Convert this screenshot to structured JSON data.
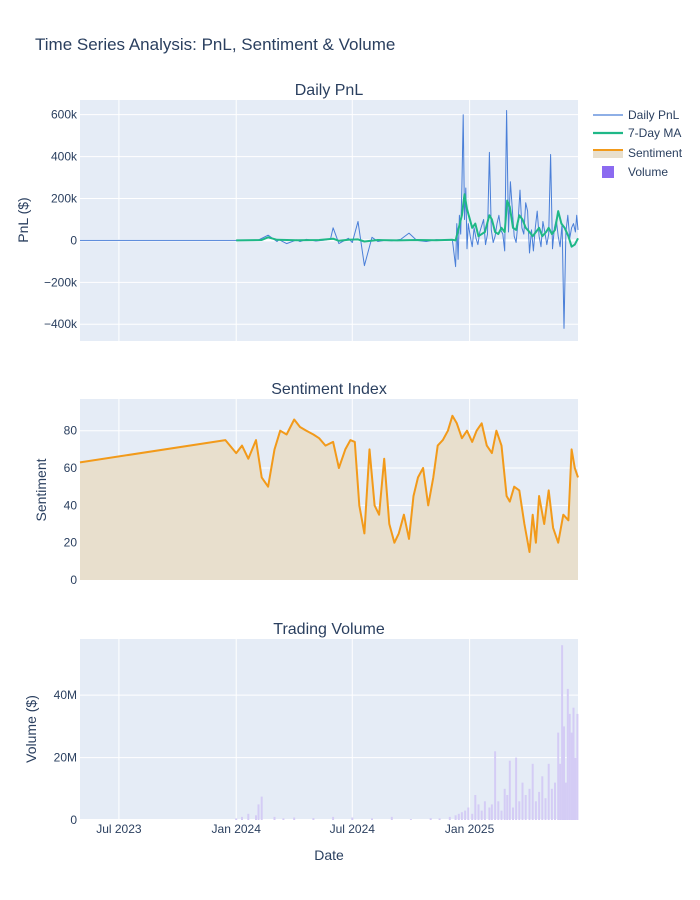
{
  "figure": {
    "title": "Time Series Analysis: PnL, Sentiment & Volume",
    "xlabel": "Date",
    "x_ticks": [
      "Jul 2023",
      "Jan 2024",
      "Jul 2024",
      "Jan 2025"
    ],
    "x_tick_dates": [
      "2023-07-01",
      "2024-01-01",
      "2024-07-01",
      "2025-01-01"
    ],
    "x_range": [
      "2023-05-01",
      "2025-06-20"
    ]
  },
  "legend": {
    "placement": "top-right",
    "entries": [
      "Daily PnL",
      "7-Day MA",
      "Sentiment",
      "Volume"
    ]
  },
  "colors": {
    "pnl": "#4a7fd8",
    "ma": "#1fb887",
    "sentiment": "#f29a1a",
    "sentiment_fill": "#e8dfcd",
    "volume": "#d4ccf5",
    "volume_legend": "#8b6af0",
    "plot_bg": "#e5ecf6",
    "grid": "#ffffff",
    "text": "#2a3f5f"
  },
  "chart_data": [
    {
      "type": "line",
      "title": "Daily PnL",
      "ylabel": "PnL ($)",
      "ylim": [
        -480000,
        670000
      ],
      "y_ticks": [
        -400000,
        -200000,
        0,
        200000,
        400000,
        600000
      ],
      "y_tick_labels": [
        "−400k",
        "−200k",
        "0",
        "200k",
        "400k",
        "600k"
      ],
      "series": [
        {
          "name": "Daily PnL",
          "x": [
            "2023-05-01",
            "2023-10-01",
            "2024-01-01",
            "2024-02-05",
            "2024-02-20",
            "2024-03-05",
            "2024-03-08",
            "2024-03-20",
            "2024-04-05",
            "2024-04-10",
            "2024-04-20",
            "2024-05-05",
            "2024-05-20",
            "2024-05-28",
            "2024-06-01",
            "2024-06-10",
            "2024-06-25",
            "2024-07-01",
            "2024-07-10",
            "2024-07-20",
            "2024-08-01",
            "2024-08-10",
            "2024-08-20",
            "2024-09-01",
            "2024-09-15",
            "2024-09-28",
            "2024-10-10",
            "2024-10-25",
            "2024-11-10",
            "2024-11-25",
            "2024-12-05",
            "2024-12-10",
            "2024-12-12",
            "2024-12-14",
            "2024-12-16",
            "2024-12-18",
            "2024-12-20",
            "2024-12-22",
            "2024-12-24",
            "2024-12-26",
            "2024-12-28",
            "2024-12-30",
            "2025-01-02",
            "2025-01-05",
            "2025-01-08",
            "2025-01-11",
            "2025-01-14",
            "2025-01-17",
            "2025-01-20",
            "2025-01-23",
            "2025-01-26",
            "2025-01-29",
            "2025-02-01",
            "2025-02-04",
            "2025-02-07",
            "2025-02-10",
            "2025-02-13",
            "2025-02-16",
            "2025-02-19",
            "2025-02-22",
            "2025-02-25",
            "2025-02-28",
            "2025-03-03",
            "2025-03-06",
            "2025-03-09",
            "2025-03-12",
            "2025-03-15",
            "2025-03-18",
            "2025-03-21",
            "2025-03-24",
            "2025-03-27",
            "2025-03-30",
            "2025-04-02",
            "2025-04-05",
            "2025-04-08",
            "2025-04-11",
            "2025-04-14",
            "2025-04-17",
            "2025-04-20",
            "2025-04-23",
            "2025-04-26",
            "2025-04-29",
            "2025-05-02",
            "2025-05-05",
            "2025-05-08",
            "2025-05-11",
            "2025-05-14",
            "2025-05-17",
            "2025-05-20",
            "2025-05-23",
            "2025-05-26",
            "2025-05-29",
            "2025-06-01",
            "2025-06-04",
            "2025-06-07",
            "2025-06-10",
            "2025-06-13",
            "2025-06-16",
            "2025-06-18",
            "2025-06-20"
          ],
          "y": [
            0,
            0,
            0,
            2000,
            25000,
            -5000,
            4000,
            -15000,
            3000,
            -5000,
            5000,
            -3000,
            2000,
            8000,
            60000,
            -15000,
            10000,
            -10000,
            90000,
            -120000,
            15000,
            -5000,
            0,
            -2000,
            5000,
            35000,
            0,
            -5000,
            4000,
            0,
            2000,
            -125000,
            80000,
            -90000,
            120000,
            30000,
            260000,
            600000,
            100000,
            250000,
            -40000,
            80000,
            20000,
            -30000,
            60000,
            10000,
            -20000,
            40000,
            70000,
            100000,
            -20000,
            30000,
            420000,
            50000,
            -10000,
            20000,
            80000,
            120000,
            50000,
            30000,
            -50000,
            620000,
            40000,
            280000,
            150000,
            20000,
            -10000,
            90000,
            240000,
            60000,
            30000,
            180000,
            140000,
            -60000,
            50000,
            -50000,
            60000,
            140000,
            20000,
            -30000,
            90000,
            40000,
            -20000,
            30000,
            410000,
            -40000,
            60000,
            100000,
            20000,
            -30000,
            80000,
            -420000,
            40000,
            120000,
            10000,
            60000,
            80000,
            40000,
            120000,
            50000
          ]
        },
        {
          "name": "7-Day MA",
          "x": [
            "2024-01-01",
            "2024-02-10",
            "2024-02-20",
            "2024-03-05",
            "2024-04-05",
            "2024-05-10",
            "2024-06-01",
            "2024-06-10",
            "2024-06-25",
            "2024-07-10",
            "2024-07-20",
            "2024-08-10",
            "2024-09-10",
            "2024-10-10",
            "2024-11-10",
            "2024-12-05",
            "2024-12-10",
            "2024-12-15",
            "2024-12-20",
            "2024-12-24",
            "2024-12-28",
            "2025-01-05",
            "2025-01-10",
            "2025-01-15",
            "2025-01-20",
            "2025-01-25",
            "2025-02-01",
            "2025-02-05",
            "2025-02-10",
            "2025-02-15",
            "2025-02-20",
            "2025-02-25",
            "2025-03-01",
            "2025-03-05",
            "2025-03-10",
            "2025-03-15",
            "2025-03-20",
            "2025-03-25",
            "2025-03-30",
            "2025-04-05",
            "2025-04-10",
            "2025-04-15",
            "2025-04-20",
            "2025-04-25",
            "2025-05-01",
            "2025-05-05",
            "2025-05-10",
            "2025-05-15",
            "2025-05-20",
            "2025-05-25",
            "2025-05-30",
            "2025-06-05",
            "2025-06-10",
            "2025-06-15",
            "2025-06-20"
          ],
          "y": [
            0,
            2000,
            15000,
            3000,
            1000,
            2000,
            8000,
            -2000,
            3000,
            5000,
            -5000,
            2000,
            0,
            2000,
            1000,
            3000,
            0,
            60000,
            120000,
            220000,
            150000,
            60000,
            80000,
            20000,
            30000,
            40000,
            120000,
            100000,
            40000,
            30000,
            60000,
            40000,
            190000,
            160000,
            60000,
            50000,
            120000,
            100000,
            60000,
            40000,
            20000,
            40000,
            60000,
            20000,
            40000,
            60000,
            30000,
            50000,
            140000,
            80000,
            60000,
            20000,
            -30000,
            -20000,
            10000
          ]
        }
      ]
    },
    {
      "type": "area",
      "title": "Sentiment Index",
      "ylabel": "Sentiment",
      "ylim": [
        0,
        97
      ],
      "y_ticks": [
        0,
        20,
        40,
        60,
        80
      ],
      "series": [
        {
          "name": "Sentiment",
          "x": [
            "2023-05-01",
            "2023-12-15",
            "2024-01-01",
            "2024-01-10",
            "2024-01-20",
            "2024-02-01",
            "2024-02-10",
            "2024-02-20",
            "2024-03-01",
            "2024-03-10",
            "2024-03-20",
            "2024-04-01",
            "2024-04-10",
            "2024-04-20",
            "2024-05-01",
            "2024-05-10",
            "2024-05-20",
            "2024-06-01",
            "2024-06-10",
            "2024-06-20",
            "2024-06-28",
            "2024-07-05",
            "2024-07-12",
            "2024-07-20",
            "2024-07-28",
            "2024-08-05",
            "2024-08-12",
            "2024-08-20",
            "2024-08-28",
            "2024-09-05",
            "2024-09-12",
            "2024-09-20",
            "2024-09-28",
            "2024-10-05",
            "2024-10-12",
            "2024-10-20",
            "2024-10-28",
            "2024-11-05",
            "2024-11-12",
            "2024-11-20",
            "2024-11-28",
            "2024-12-05",
            "2024-12-12",
            "2024-12-20",
            "2024-12-28",
            "2025-01-05",
            "2025-01-12",
            "2025-01-20",
            "2025-01-28",
            "2025-02-05",
            "2025-02-12",
            "2025-02-20",
            "2025-02-28",
            "2025-03-05",
            "2025-03-12",
            "2025-03-20",
            "2025-03-28",
            "2025-04-05",
            "2025-04-10",
            "2025-04-15",
            "2025-04-20",
            "2025-04-28",
            "2025-05-05",
            "2025-05-12",
            "2025-05-20",
            "2025-05-28",
            "2025-06-05",
            "2025-06-10",
            "2025-06-15",
            "2025-06-20"
          ],
          "y": [
            63,
            75,
            68,
            72,
            65,
            75,
            55,
            50,
            70,
            80,
            78,
            86,
            82,
            80,
            78,
            76,
            72,
            74,
            60,
            70,
            75,
            74,
            40,
            25,
            70,
            40,
            35,
            65,
            30,
            20,
            25,
            35,
            22,
            45,
            55,
            60,
            40,
            55,
            72,
            75,
            80,
            88,
            84,
            76,
            80,
            74,
            80,
            84,
            72,
            68,
            80,
            72,
            45,
            42,
            50,
            48,
            30,
            15,
            35,
            20,
            45,
            30,
            48,
            28,
            20,
            35,
            32,
            70,
            60,
            55
          ]
        }
      ]
    },
    {
      "type": "bar",
      "title": "Trading Volume",
      "ylabel": "Volume ($)",
      "ylim": [
        0,
        58000000
      ],
      "y_ticks": [
        0,
        20000000,
        40000000
      ],
      "y_tick_labels": [
        "0",
        "20M",
        "40M"
      ],
      "series": [
        {
          "name": "Volume",
          "x": [
            "2024-01-01",
            "2024-01-10",
            "2024-01-20",
            "2024-02-01",
            "2024-02-05",
            "2024-02-10",
            "2024-03-01",
            "2024-03-15",
            "2024-04-01",
            "2024-05-01",
            "2024-06-01",
            "2024-07-01",
            "2024-08-01",
            "2024-09-01",
            "2024-10-01",
            "2024-11-01",
            "2024-11-15",
            "2024-12-01",
            "2024-12-10",
            "2024-12-15",
            "2024-12-20",
            "2024-12-25",
            "2024-12-30",
            "2025-01-05",
            "2025-01-10",
            "2025-01-15",
            "2025-01-20",
            "2025-01-25",
            "2025-02-01",
            "2025-02-05",
            "2025-02-10",
            "2025-02-15",
            "2025-02-20",
            "2025-02-25",
            "2025-03-01",
            "2025-03-05",
            "2025-03-10",
            "2025-03-15",
            "2025-03-20",
            "2025-03-25",
            "2025-03-30",
            "2025-04-05",
            "2025-04-10",
            "2025-04-15",
            "2025-04-20",
            "2025-04-25",
            "2025-04-30",
            "2025-05-05",
            "2025-05-10",
            "2025-05-15",
            "2025-05-20",
            "2025-05-23",
            "2025-05-26",
            "2025-05-29",
            "2025-06-01",
            "2025-06-04",
            "2025-06-07",
            "2025-06-10",
            "2025-06-13",
            "2025-06-16",
            "2025-06-19"
          ],
          "y": [
            500000,
            1000000,
            2000000,
            1500000,
            5000000,
            7500000,
            1000000,
            500000,
            800000,
            600000,
            1000000,
            800000,
            500000,
            1000000,
            300000,
            600000,
            500000,
            1000000,
            1500000,
            2000000,
            2500000,
            3000000,
            4000000,
            2000000,
            8000000,
            5000000,
            3000000,
            6000000,
            4000000,
            5000000,
            22000000,
            6000000,
            3000000,
            10000000,
            8000000,
            19000000,
            4000000,
            20000000,
            6000000,
            12000000,
            8000000,
            10000000,
            18000000,
            6000000,
            9000000,
            14000000,
            7000000,
            18000000,
            10000000,
            12000000,
            28000000,
            18000000,
            56000000,
            30000000,
            12000000,
            42000000,
            34000000,
            28000000,
            36000000,
            20000000,
            34000000
          ]
        }
      ]
    }
  ]
}
